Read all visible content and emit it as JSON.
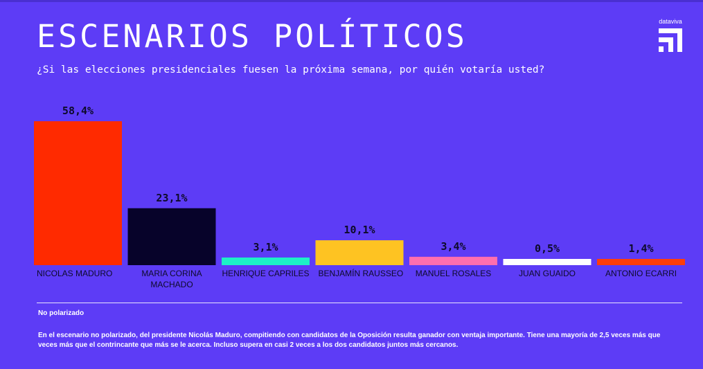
{
  "header": {
    "title": "ESCENARIOS POLÍTICOS",
    "subtitle": "¿Si las elecciones presidenciales fuesen la próxima semana, por quién votaría usted?",
    "brand": "dataviva"
  },
  "colors": {
    "background": "#5d3cf6",
    "label_text": "#0d0a2a",
    "candidate_text": "#0d0a2a"
  },
  "chart_data": {
    "type": "bar",
    "title": "ESCENARIOS POLÍTICOS",
    "subtitle": "¿Si las elecciones presidenciales fuesen la próxima semana, por quién votaría usted?",
    "categories": [
      "NICOLAS MADURO",
      "MARIA CORINA\nMACHADO",
      "HENRIQUE CAPRILES",
      "BENJAMÍN RAUSSEO",
      "MANUEL ROSALES",
      "JUAN GUAIDO",
      "ANTONIO ECARRI"
    ],
    "values": [
      58.4,
      23.1,
      3.1,
      10.1,
      3.4,
      0.5,
      1.4
    ],
    "value_labels": [
      "58,4%",
      "23,1%",
      "3,1%",
      "10,1%",
      "3,4%",
      "0,5%",
      "1,4%"
    ],
    "bar_colors": [
      "#ff2a00",
      "#07032a",
      "#1df0c7",
      "#fec322",
      "#ff6eaf",
      "#ffffff",
      "#ff3d0a"
    ],
    "unit": "%",
    "xlabel": "",
    "ylabel": "",
    "ylim": [
      0,
      60
    ],
    "grid": false,
    "legend": "none"
  },
  "note": {
    "title": "No polarizado",
    "text": "En el escenario no polarizado, del presidente Nicolás Maduro, compitiendo con candidatos de la Oposición resulta ganador con ventaja importante.  Tiene una mayoría de 2,5 veces más que veces más que el contrincante que más se le acerca. Incluso supera en casi 2 veces a los dos candidatos juntos más cercanos."
  }
}
